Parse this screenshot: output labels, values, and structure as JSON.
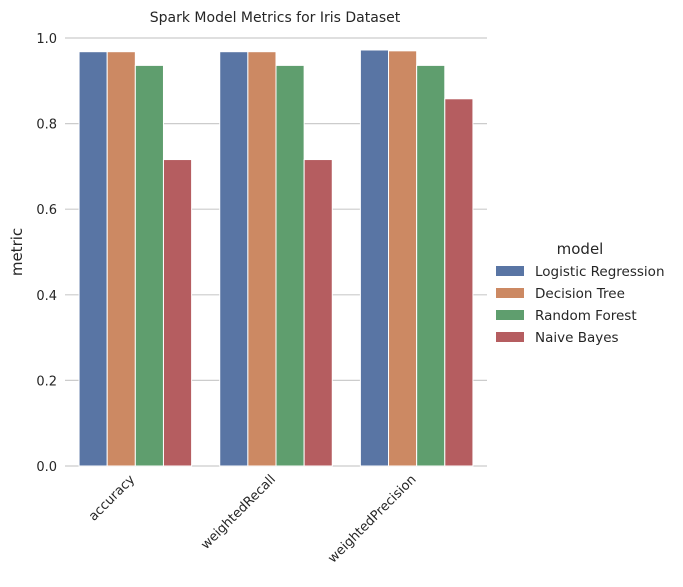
{
  "chart_data": {
    "type": "bar",
    "title": "Spark Model Metrics for Iris Dataset",
    "xlabel": "",
    "ylabel": "metric",
    "ylim": [
      0,
      1.0
    ],
    "yticks": [
      "0.0",
      "0.2",
      "0.4",
      "0.6",
      "0.8",
      "1.0"
    ],
    "categories": [
      "accuracy",
      "weightedRecall",
      "weightedPrecision"
    ],
    "grid": "horizontal",
    "legend": {
      "title": "model",
      "placement": "right"
    },
    "series": [
      {
        "name": "Logistic Regression",
        "color": "#5975a4",
        "values": [
          0.968,
          0.968,
          0.972
        ]
      },
      {
        "name": "Decision Tree",
        "color": "#cc8963",
        "values": [
          0.968,
          0.968,
          0.97
        ]
      },
      {
        "name": "Random Forest",
        "color": "#5f9e6e",
        "values": [
          0.936,
          0.936,
          0.936
        ]
      },
      {
        "name": "Naive Bayes",
        "color": "#b55d60",
        "values": [
          0.716,
          0.716,
          0.858
        ]
      }
    ]
  }
}
